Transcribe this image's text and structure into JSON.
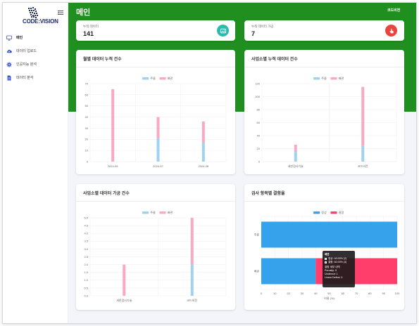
{
  "brand": {
    "logo_text": "CODE:VISION"
  },
  "sidebar": {
    "items": [
      {
        "label": "메인",
        "icon": "monitor-icon",
        "active": true
      },
      {
        "label": "데이터 업로드",
        "icon": "cloud-upload-icon",
        "active": false
      },
      {
        "label": "인공지능 분석",
        "icon": "gear-icon",
        "active": false
      },
      {
        "label": "데이터 분석",
        "icon": "document-icon",
        "active": false
      }
    ]
  },
  "header": {
    "title": "메인",
    "right_link": "코드비전"
  },
  "stats": [
    {
      "label": "누적 데이터",
      "value": "141",
      "icon": "image-icon",
      "color": "#2bbbad"
    },
    {
      "label": "누적 데이터 가공",
      "value": "7",
      "icon": "hand-pointer-icon",
      "color": "#e9443e"
    }
  ],
  "colors": {
    "series_a": "#9fd2ee",
    "series_b": "#f7aac1",
    "normal": "#36a2eb",
    "defect": "#ff3e6c",
    "header_green": "#1f8f1f"
  },
  "charts": {
    "monthly": {
      "title": "월별 데이터 누적 건수"
    },
    "by_business": {
      "title": "사업소별 누적 데이터 건수"
    },
    "by_business_processed": {
      "title": "사업소별 데이터 가공 건수"
    },
    "inspection": {
      "title": "검사 항목별 결함율"
    }
  },
  "tooltip": {
    "title": "배관",
    "lines": [
      "정상: 40.00% (2)",
      "결함: 60.00% (3)",
      "",
      "결함 세부 내역",
      "Porosity: 5",
      "Undercut: 1",
      "Linear Defect: 0"
    ]
  },
  "chart_data": [
    {
      "type": "bar",
      "title": "월별 데이터 누적 건수",
      "stacked": true,
      "categories": [
        "2024-05",
        "2024-07",
        "2024-08"
      ],
      "series": [
        {
          "name": "주물",
          "values": [
            0,
            21,
            17
          ]
        },
        {
          "name": "배관",
          "values": [
            65,
            19,
            19
          ]
        }
      ],
      "ylim": [
        0,
        70
      ],
      "yticks": [
        0,
        10,
        20,
        30,
        40,
        50,
        60,
        70
      ],
      "legend": "top"
    },
    {
      "type": "bar",
      "title": "사업소별 누적 데이터 건수",
      "stacked": true,
      "categories": [
        "세한검사기술",
        "코드비전"
      ],
      "series": [
        {
          "name": "주물",
          "values": [
            15,
            24
          ]
        },
        {
          "name": "배관",
          "values": [
            11,
            91
          ]
        }
      ],
      "ylim": [
        0,
        120
      ],
      "yticks": [
        0,
        20,
        40,
        60,
        80,
        100,
        120
      ],
      "legend": "top"
    },
    {
      "type": "bar",
      "title": "사업소별 데이터 가공 건수",
      "stacked": true,
      "categories": [
        "세한검사기술",
        "코드비전"
      ],
      "series": [
        {
          "name": "주물",
          "values": [
            0,
            2
          ]
        },
        {
          "name": "배관",
          "values": [
            2,
            3
          ]
        }
      ],
      "ylim": [
        0,
        5
      ],
      "yticks": [
        0,
        0.5,
        1.0,
        1.5,
        2.0,
        2.5,
        3.0,
        3.5,
        4.0,
        4.5,
        5.0
      ],
      "legend": "top"
    },
    {
      "type": "bar",
      "orientation": "horizontal",
      "title": "검사 항목별 결함율",
      "stacked": true,
      "categories": [
        "주물",
        "배관"
      ],
      "series": [
        {
          "name": "정상",
          "values": [
            100,
            40
          ]
        },
        {
          "name": "결함",
          "values": [
            0,
            60
          ]
        }
      ],
      "xlabel": "비율 (%)",
      "xlim": [
        0,
        100
      ],
      "xticks": [
        0,
        10,
        20,
        30,
        40,
        50,
        60,
        70,
        80,
        90,
        100
      ],
      "legend": "top"
    }
  ]
}
